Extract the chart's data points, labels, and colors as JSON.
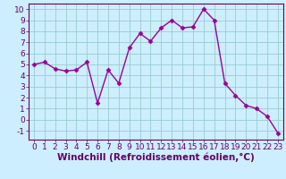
{
  "x": [
    0,
    1,
    2,
    3,
    4,
    5,
    6,
    7,
    8,
    9,
    10,
    11,
    12,
    13,
    14,
    15,
    16,
    17,
    18,
    19,
    20,
    21,
    22,
    23
  ],
  "y": [
    5.0,
    5.2,
    4.6,
    4.4,
    4.5,
    5.2,
    1.5,
    4.5,
    3.3,
    6.5,
    7.8,
    7.1,
    8.3,
    9.0,
    8.3,
    8.4,
    10.0,
    9.0,
    3.3,
    2.2,
    1.3,
    1.0,
    0.3,
    -1.2
  ],
  "line_color": "#990099",
  "marker": "D",
  "markersize": 2.5,
  "linewidth": 1.0,
  "xlabel": "Windchill (Refroidissement éolien,°C)",
  "xlim": [
    -0.5,
    23.5
  ],
  "ylim": [
    -1.8,
    10.5
  ],
  "yticks": [
    -1,
    0,
    1,
    2,
    3,
    4,
    5,
    6,
    7,
    8,
    9,
    10
  ],
  "xticks": [
    0,
    1,
    2,
    3,
    4,
    5,
    6,
    7,
    8,
    9,
    10,
    11,
    12,
    13,
    14,
    15,
    16,
    17,
    18,
    19,
    20,
    21,
    22,
    23
  ],
  "background_color": "#cceeff",
  "grid_color": "#99cccc",
  "tick_label_fontsize": 6.5,
  "xlabel_fontsize": 7.5,
  "text_color": "#660066"
}
